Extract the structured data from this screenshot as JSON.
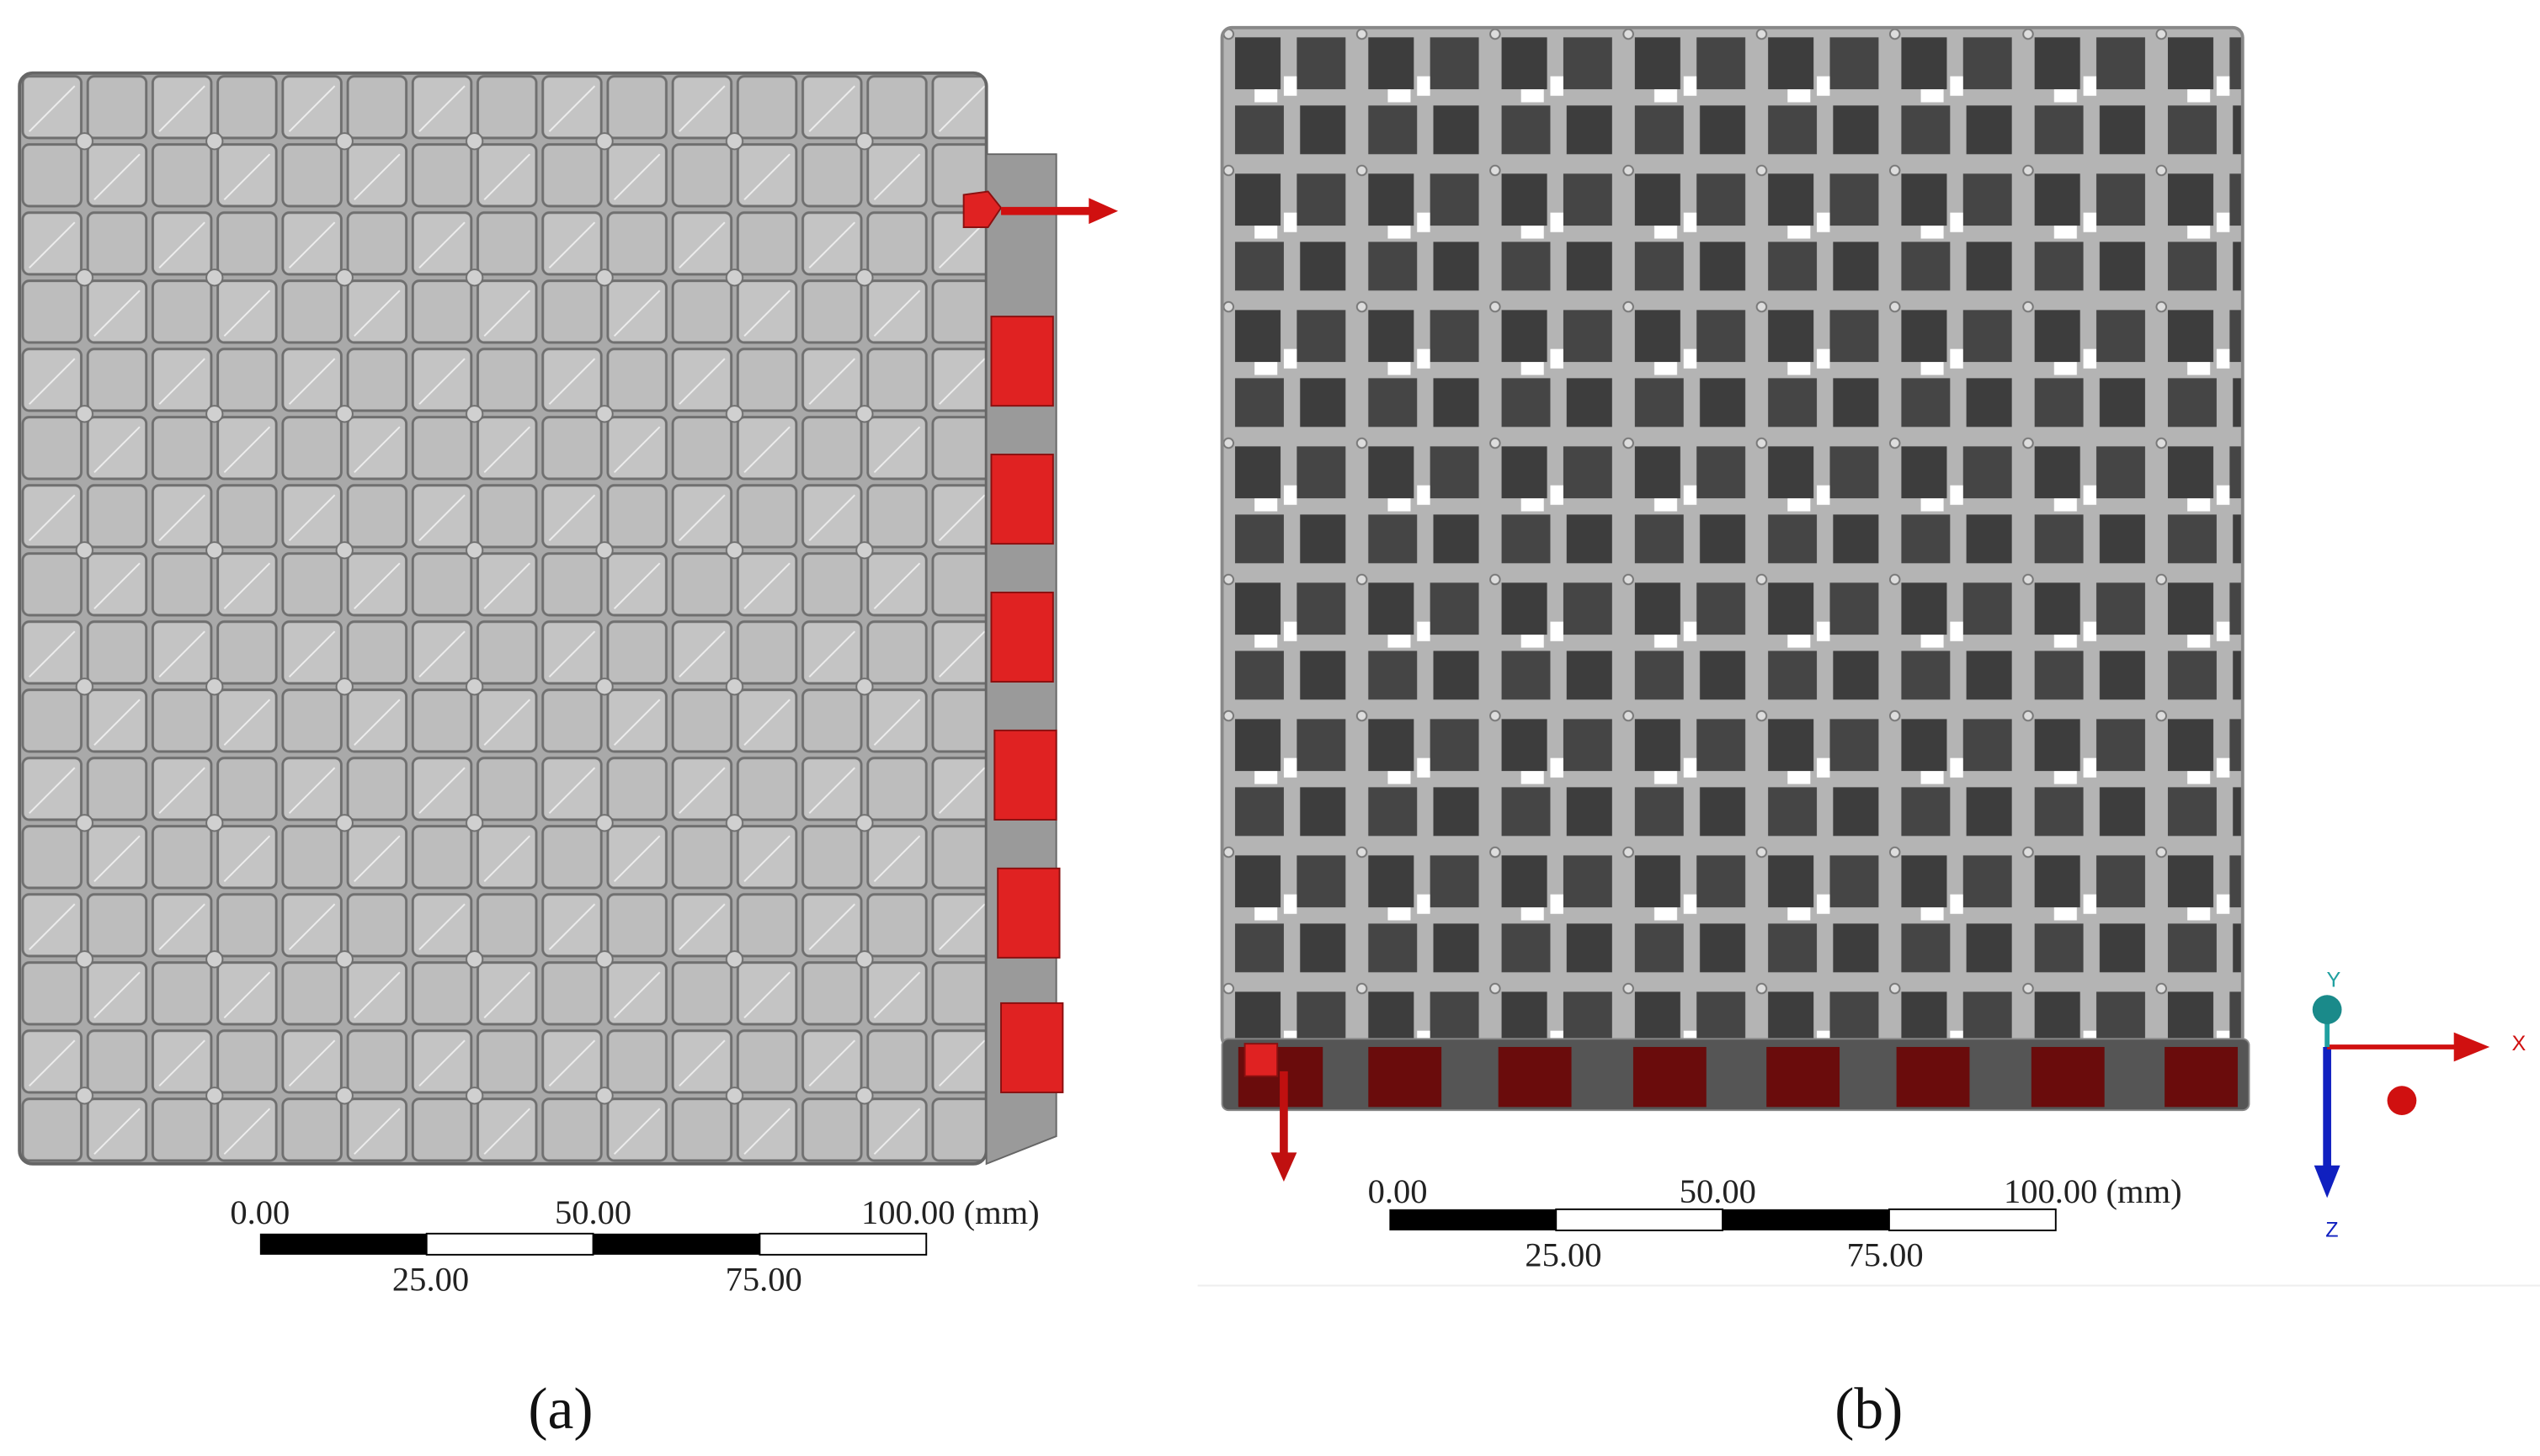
{
  "panels": [
    {
      "label": "(a)",
      "scale_bar": {
        "top": [
          "0.00",
          "50.00",
          "100.00 (mm)"
        ],
        "bottom": [
          "25.00",
          "75.00"
        ]
      }
    },
    {
      "label": "(b)",
      "scale_bar": {
        "top": [
          "0.00",
          "50.00",
          "100.00 (mm)"
        ],
        "bottom": [
          "25.00",
          "75.00"
        ]
      }
    }
  ],
  "triad": {
    "x": "X",
    "y": "Y",
    "z": "Z"
  }
}
